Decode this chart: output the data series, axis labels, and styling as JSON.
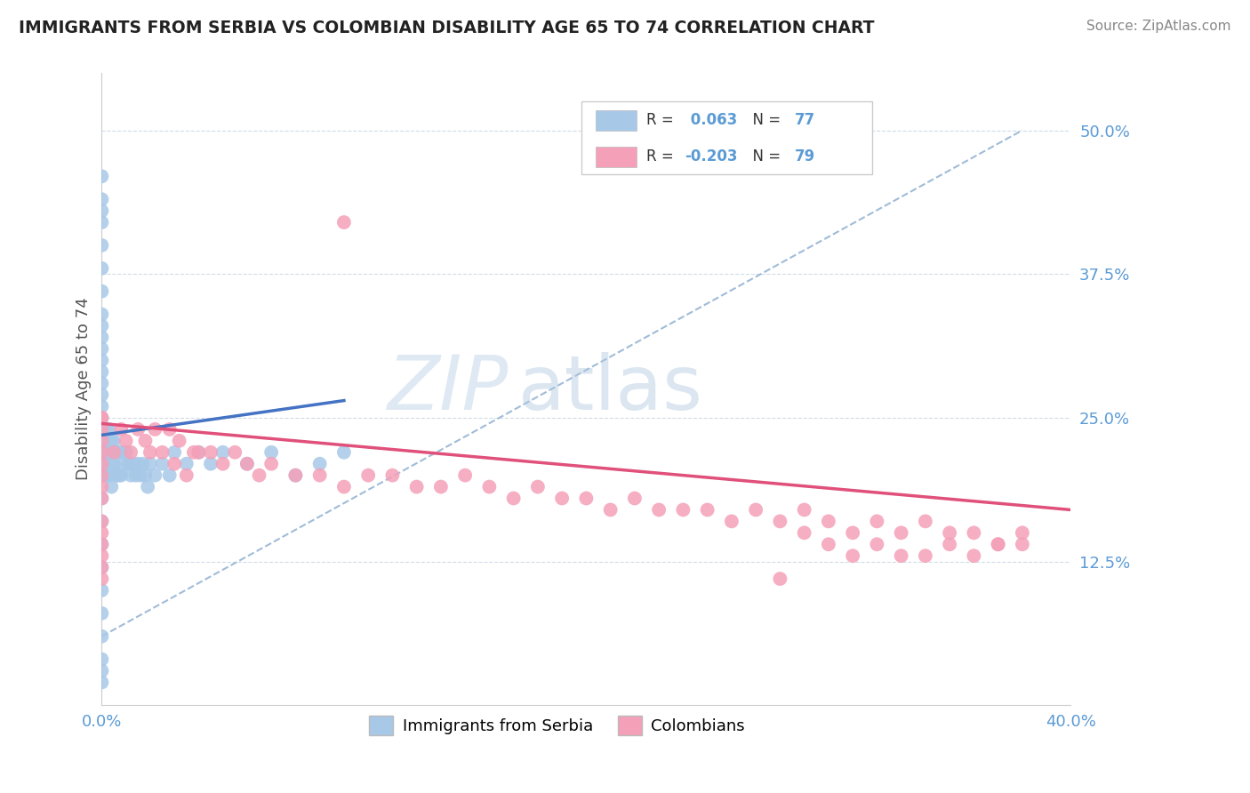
{
  "title": "IMMIGRANTS FROM SERBIA VS COLOMBIAN DISABILITY AGE 65 TO 74 CORRELATION CHART",
  "source": "Source: ZipAtlas.com",
  "ylabel": "Disability Age 65 to 74",
  "xlim": [
    0.0,
    0.4
  ],
  "ylim": [
    0.0,
    0.55
  ],
  "ytick_values": [
    0.125,
    0.25,
    0.375,
    0.5
  ],
  "ytick_labels": [
    "12.5%",
    "25.0%",
    "37.5%",
    "50.0%"
  ],
  "xtick_values": [
    0.0,
    0.4
  ],
  "xtick_labels": [
    "0.0%",
    "40.0%"
  ],
  "color_serbia": "#a8c8e8",
  "color_colombia": "#f4a0b8",
  "line_color_serbia": "#4472c4",
  "line_color_colombia": "#e0507a",
  "dash_line_color": "#a0bcd8",
  "watermark_color": "#c8d8e8",
  "serbia_x": [
    0.0,
    0.0,
    0.0,
    0.0,
    0.0,
    0.0,
    0.0,
    0.0,
    0.0,
    0.0,
    0.0,
    0.0,
    0.0,
    0.0,
    0.0,
    0.0,
    0.0,
    0.0,
    0.0,
    0.0,
    0.0,
    0.0,
    0.0,
    0.0,
    0.0,
    0.0,
    0.0,
    0.0,
    0.0,
    0.0,
    0.001,
    0.001,
    0.001,
    0.001,
    0.001,
    0.002,
    0.002,
    0.002,
    0.003,
    0.003,
    0.003,
    0.004,
    0.004,
    0.004,
    0.005,
    0.005,
    0.006,
    0.006,
    0.007,
    0.007,
    0.008,
    0.008,
    0.009,
    0.01,
    0.011,
    0.012,
    0.013,
    0.014,
    0.015,
    0.016,
    0.017,
    0.018,
    0.019,
    0.02,
    0.022,
    0.025,
    0.028,
    0.03,
    0.035,
    0.04,
    0.045,
    0.05,
    0.06,
    0.07,
    0.08,
    0.09,
    0.1
  ],
  "serbia_y": [
    0.46,
    0.44,
    0.43,
    0.42,
    0.4,
    0.38,
    0.36,
    0.34,
    0.32,
    0.3,
    0.28,
    0.26,
    0.24,
    0.22,
    0.2,
    0.18,
    0.16,
    0.14,
    0.12,
    0.1,
    0.08,
    0.06,
    0.04,
    0.03,
    0.02,
    0.25,
    0.27,
    0.29,
    0.31,
    0.33,
    0.23,
    0.21,
    0.24,
    0.22,
    0.2,
    0.24,
    0.22,
    0.2,
    0.24,
    0.22,
    0.2,
    0.23,
    0.21,
    0.19,
    0.23,
    0.21,
    0.22,
    0.2,
    0.22,
    0.2,
    0.22,
    0.2,
    0.21,
    0.22,
    0.21,
    0.2,
    0.21,
    0.2,
    0.21,
    0.2,
    0.21,
    0.2,
    0.19,
    0.21,
    0.2,
    0.21,
    0.2,
    0.22,
    0.21,
    0.22,
    0.21,
    0.22,
    0.21,
    0.22,
    0.2,
    0.21,
    0.22
  ],
  "colombia_x": [
    0.0,
    0.0,
    0.0,
    0.0,
    0.0,
    0.0,
    0.0,
    0.0,
    0.0,
    0.0,
    0.0,
    0.0,
    0.0,
    0.0,
    0.0,
    0.005,
    0.008,
    0.01,
    0.012,
    0.015,
    0.018,
    0.02,
    0.022,
    0.025,
    0.028,
    0.03,
    0.032,
    0.035,
    0.038,
    0.04,
    0.045,
    0.05,
    0.055,
    0.06,
    0.065,
    0.07,
    0.08,
    0.09,
    0.1,
    0.11,
    0.12,
    0.13,
    0.14,
    0.15,
    0.16,
    0.17,
    0.18,
    0.19,
    0.2,
    0.21,
    0.22,
    0.23,
    0.24,
    0.25,
    0.26,
    0.27,
    0.28,
    0.29,
    0.3,
    0.31,
    0.32,
    0.33,
    0.34,
    0.35,
    0.36,
    0.37,
    0.38,
    0.38,
    0.37,
    0.36,
    0.35,
    0.34,
    0.33,
    0.32,
    0.31,
    0.3,
    0.29,
    0.28,
    0.1
  ],
  "colombia_y": [
    0.25,
    0.23,
    0.24,
    0.22,
    0.21,
    0.2,
    0.19,
    0.18,
    0.16,
    0.15,
    0.14,
    0.13,
    0.12,
    0.11,
    0.25,
    0.22,
    0.24,
    0.23,
    0.22,
    0.24,
    0.23,
    0.22,
    0.24,
    0.22,
    0.24,
    0.21,
    0.23,
    0.2,
    0.22,
    0.22,
    0.22,
    0.21,
    0.22,
    0.21,
    0.2,
    0.21,
    0.2,
    0.2,
    0.19,
    0.2,
    0.2,
    0.19,
    0.19,
    0.2,
    0.19,
    0.18,
    0.19,
    0.18,
    0.18,
    0.17,
    0.18,
    0.17,
    0.17,
    0.17,
    0.16,
    0.17,
    0.16,
    0.17,
    0.16,
    0.15,
    0.16,
    0.15,
    0.16,
    0.15,
    0.15,
    0.14,
    0.15,
    0.14,
    0.14,
    0.13,
    0.14,
    0.13,
    0.13,
    0.14,
    0.13,
    0.14,
    0.15,
    0.11,
    0.42
  ],
  "serbia_line_x": [
    0.0,
    0.1
  ],
  "serbia_line_y": [
    0.235,
    0.265
  ],
  "colombia_line_x": [
    0.0,
    0.4
  ],
  "colombia_line_y": [
    0.245,
    0.17
  ],
  "dash_line_x": [
    0.0,
    0.38
  ],
  "dash_line_y": [
    0.06,
    0.5
  ]
}
